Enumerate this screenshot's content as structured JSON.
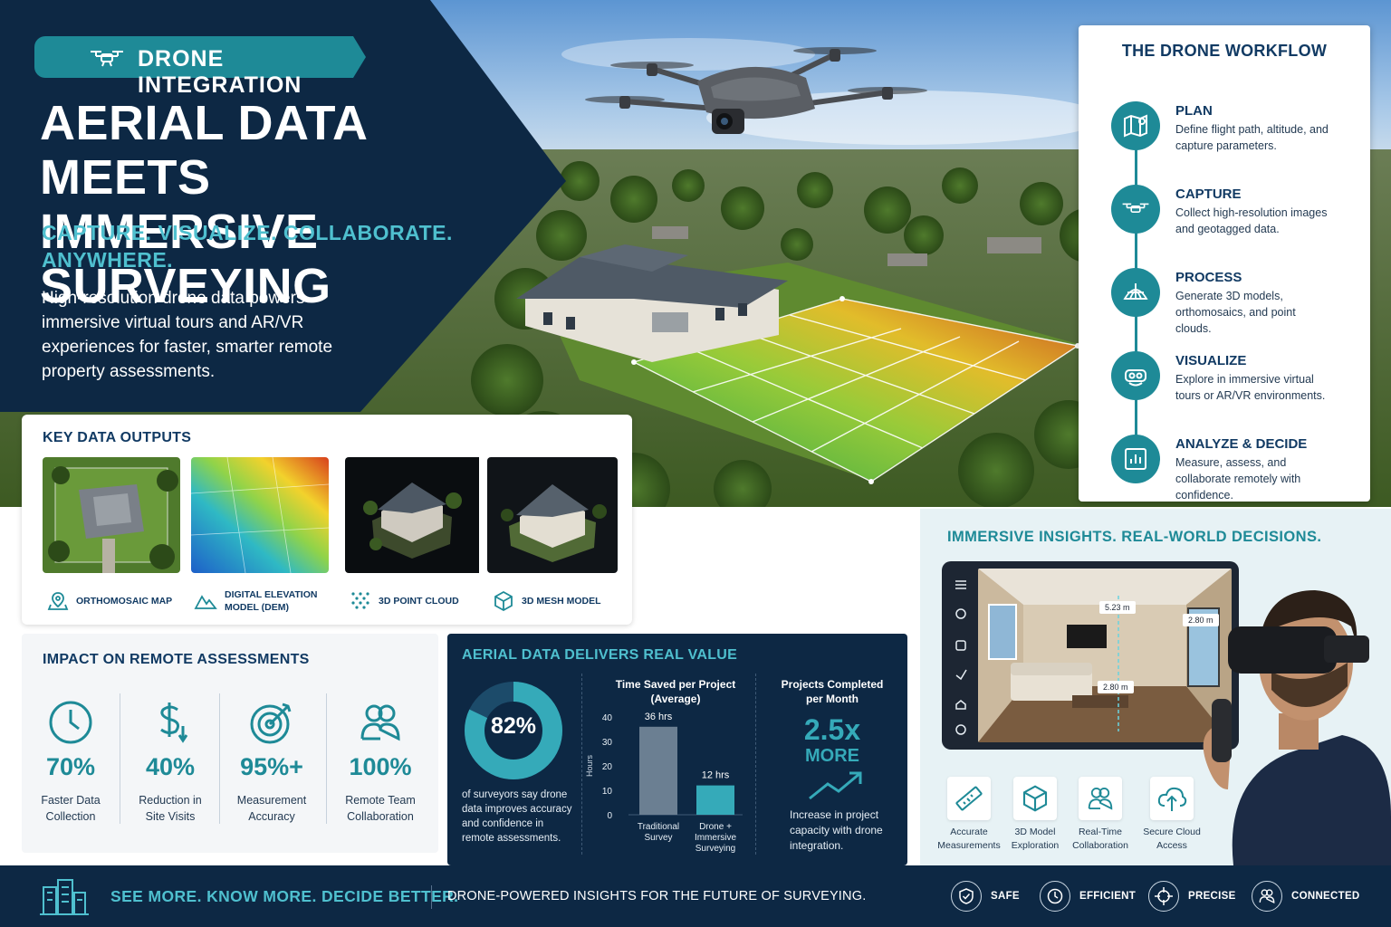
{
  "colors": {
    "navy": "#0d2844",
    "teal": "#1e8a97",
    "teal_light": "#4fc0cf",
    "white": "#ffffff"
  },
  "hero": {
    "badge": "DRONE INTEGRATION",
    "badge_icon": "drone-icon",
    "title_line1": "AERIAL DATA MEETS",
    "title_line2": "IMMERSIVE SURVEYING",
    "subtitle_line1": "CAPTURE. VISUALIZE. COLLABORATE.",
    "subtitle_line2": "ANYWHERE.",
    "description": "High-resolution drone data powers immersive virtual tours and AR/VR experiences for faster, smarter remote property assessments."
  },
  "workflow": {
    "title": "THE DRONE WORKFLOW",
    "steps": [
      {
        "name": "PLAN",
        "desc": "Define flight path, altitude, and capture parameters.",
        "icon": "map-pin-icon"
      },
      {
        "name": "CAPTURE",
        "desc": "Collect high-resolution images and geotagged data.",
        "icon": "drone-icon"
      },
      {
        "name": "PROCESS",
        "desc": "Generate 3D models, orthomosaics, and point clouds.",
        "icon": "globe-mesh-icon"
      },
      {
        "name": "VISUALIZE",
        "desc": "Explore in immersive virtual tours or AR/VR environments.",
        "icon": "vr-headset-icon"
      },
      {
        "name": "ANALYZE & DECIDE",
        "desc": "Measure, assess, and collaborate remotely with confidence.",
        "icon": "bar-chart-icon"
      }
    ]
  },
  "outputs": {
    "title": "KEY DATA OUTPUTS",
    "items": [
      {
        "label_line1": "ORTHOMOSAIC MAP",
        "label_line2": "",
        "icon": "map-location-icon"
      },
      {
        "label_line1": "DIGITAL ELEVATION",
        "label_line2": "MODEL (DEM)",
        "icon": "mountain-icon"
      },
      {
        "label_line1": "3D POINT CLOUD",
        "label_line2": "",
        "icon": "point-cloud-icon"
      },
      {
        "label_line1": "3D MESH MODEL",
        "label_line2": "",
        "icon": "cube-icon"
      }
    ]
  },
  "impact": {
    "title": "IMPACT ON REMOTE ASSESSMENTS",
    "stats": [
      {
        "value": "70%",
        "label_line1": "Faster Data",
        "label_line2": "Collection",
        "icon": "clock-icon"
      },
      {
        "value": "40%",
        "label_line1": "Reduction in",
        "label_line2": "Site Visits",
        "icon": "dollar-down-icon"
      },
      {
        "value": "95%+",
        "label_line1": "Measurement",
        "label_line2": "Accuracy",
        "icon": "target-icon"
      },
      {
        "value": "100%",
        "label_line1": "Remote Team",
        "label_line2": "Collaboration",
        "icon": "team-icon"
      }
    ]
  },
  "value": {
    "title": "AERIAL DATA DELIVERS REAL VALUE",
    "donut_value": "82%",
    "donut_percent": 82,
    "donut_desc": "of surveyors say drone data improves accuracy and confidence in remote assessments.",
    "bar_title_line1": "Time Saved per Project",
    "bar_title_line2": "(Average)",
    "projects_title_line1": "Projects Completed",
    "projects_title_line2": "per Month",
    "projects_value": "2.5x",
    "projects_more": "MORE",
    "projects_desc": "Increase in project capacity with drone integration."
  },
  "chart_data": {
    "type": "bar",
    "categories": [
      "Traditional Survey",
      "Drone + Immersive Surveying"
    ],
    "category_lines": [
      [
        "Traditional",
        "Survey"
      ],
      [
        "Drone +",
        "Immersive",
        "Surveying"
      ]
    ],
    "values": [
      36,
      12
    ],
    "data_labels": [
      "36 hrs",
      "12 hrs"
    ],
    "ylabel": "Hours",
    "ylim": [
      0,
      40
    ],
    "yticks": [
      0,
      10,
      20,
      30,
      40
    ],
    "colors": [
      "#6b7f92",
      "#35aab9"
    ]
  },
  "immersive": {
    "title": "IMMERSIVE INSIGHTS. REAL-WORLD DECISIONS.",
    "measurements": [
      "5.23 m",
      "2.80 m",
      "2.80 m"
    ],
    "features": [
      {
        "label_line1": "Accurate",
        "label_line2": "Measurements",
        "icon": "ruler-icon"
      },
      {
        "label_line1": "3D Model",
        "label_line2": "Exploration",
        "icon": "cube-icon"
      },
      {
        "label_line1": "Real-Time",
        "label_line2": "Collaboration",
        "icon": "team-icon"
      },
      {
        "label_line1": "Secure Cloud",
        "label_line2": "Access",
        "icon": "cloud-upload-icon"
      }
    ]
  },
  "footer": {
    "slogan": "SEE MORE. KNOW MORE. DECIDE BETTER.",
    "tagline": "DRONE-POWERED INSIGHTS FOR THE FUTURE OF SURVEYING.",
    "values": [
      {
        "label": "SAFE",
        "icon": "shield-check-icon"
      },
      {
        "label": "EFFICIENT",
        "icon": "clock-icon"
      },
      {
        "label": "PRECISE",
        "icon": "crosshair-icon"
      },
      {
        "label": "CONNECTED",
        "icon": "team-icon"
      }
    ]
  }
}
